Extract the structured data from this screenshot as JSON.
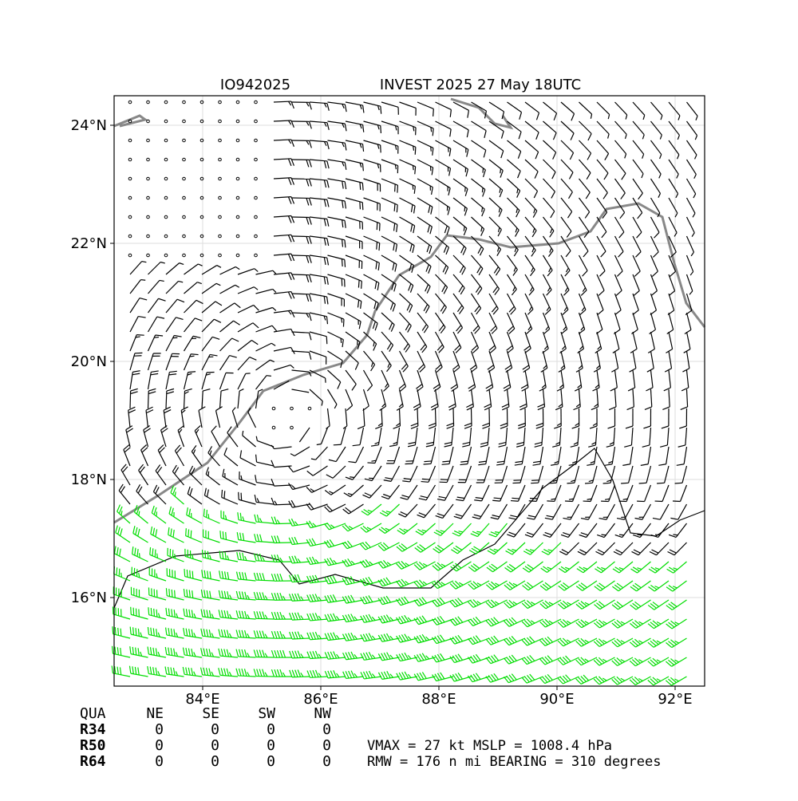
{
  "map_data": {
    "title_left": "IO942025",
    "title_right": "INVEST 2025 27 May 18UTC",
    "xlim": [
      82.5,
      92.5
    ],
    "ylim": [
      14.5,
      24.5
    ],
    "xticks": [
      {
        "value": 84,
        "label": "84°E"
      },
      {
        "value": 86,
        "label": "86°E"
      },
      {
        "value": 88,
        "label": "88°E"
      },
      {
        "value": 90,
        "label": "90°E"
      },
      {
        "value": 92,
        "label": "92°E"
      }
    ],
    "yticks": [
      {
        "value": 16,
        "label": "16°N"
      },
      {
        "value": 18,
        "label": "18°N"
      },
      {
        "value": 20,
        "label": "20°N"
      },
      {
        "value": 22,
        "label": "22°N"
      },
      {
        "value": 24,
        "label": "24°N"
      }
    ],
    "grid": true
  },
  "table": {
    "header": [
      "QUA",
      "NE",
      "SE",
      "SW",
      "NW"
    ],
    "rows": [
      [
        "R34",
        0,
        0,
        0,
        0
      ],
      [
        "R50",
        0,
        0,
        0,
        0
      ],
      [
        "R64",
        0,
        0,
        0,
        0
      ]
    ]
  },
  "info": [
    "VMAX =  27 kt MSLP = 1008.4 hPa",
    "RMW = 176 n mi BEARING = 310 degrees"
  ]
}
